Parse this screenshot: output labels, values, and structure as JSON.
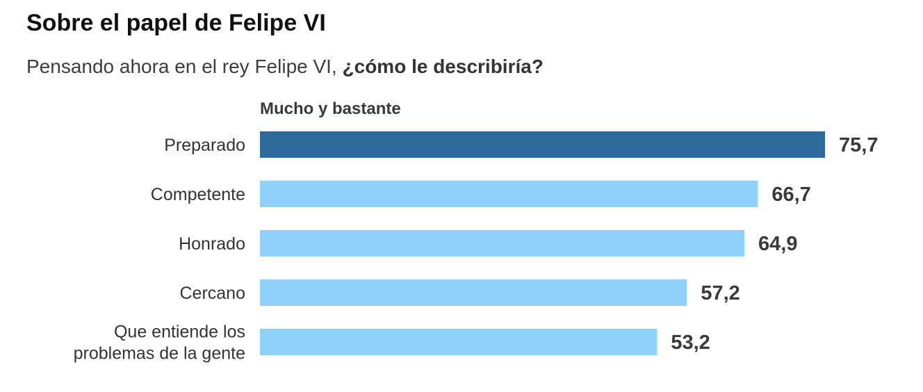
{
  "title": "Sobre el papel de Felipe VI",
  "subtitle": {
    "lead": "Pensando ahora en el rey Felipe VI, ",
    "emphasis": "¿cómo le describiría?"
  },
  "chart_data": {
    "type": "bar",
    "orientation": "horizontal",
    "header": "Mucho y bastante",
    "categories": [
      [
        "Preparado"
      ],
      [
        "Competente"
      ],
      [
        "Honrado"
      ],
      [
        "Cercano"
      ],
      [
        "Que entiende los",
        "problemas de la gente"
      ]
    ],
    "values": [
      75.7,
      66.7,
      64.9,
      57.2,
      53.2
    ],
    "value_labels": [
      "75,7",
      "66,7",
      "64,9",
      "57,2",
      "53,2"
    ],
    "highlight_index": 0,
    "colors": {
      "highlight": "#2c6a9c",
      "default": "#8fd1fb",
      "label": "#333333",
      "value": "#3a3a3a"
    }
  }
}
